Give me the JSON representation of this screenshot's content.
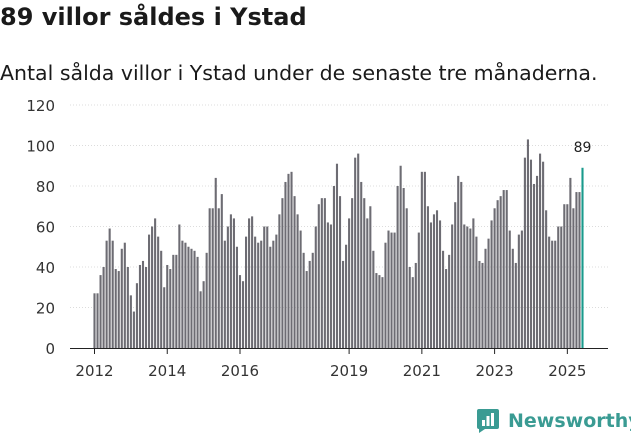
{
  "headline": "89 villor såldes i Ystad",
  "chart_data": {
    "type": "bar",
    "title": "89 villor såldes i Ystad",
    "subtitle": "Antal sålda villor i Ystad under de senaste tre månaderna.",
    "xlabel": "",
    "ylabel": "",
    "ylim": [
      0,
      120
    ],
    "yticks": [
      "0",
      "20",
      "40",
      "60",
      "80",
      "100",
      "120"
    ],
    "xticks": [
      "2012",
      "2014",
      "2016",
      "2019",
      "2021",
      "2023",
      "2025"
    ],
    "start_year": 2012,
    "grid": true,
    "highlight_color": "#1a9a8c",
    "bar_color": "#6d6c73",
    "last_label": "89",
    "values": [
      27,
      27,
      36,
      40,
      53,
      59,
      53,
      39,
      38,
      49,
      52,
      40,
      26,
      18,
      32,
      41,
      43,
      40,
      56,
      60,
      64,
      55,
      48,
      30,
      41,
      39,
      46,
      46,
      61,
      53,
      52,
      50,
      49,
      48,
      45,
      28,
      33,
      47,
      69,
      69,
      84,
      69,
      76,
      53,
      60,
      66,
      64,
      50,
      36,
      33,
      55,
      64,
      65,
      55,
      52,
      53,
      60,
      60,
      50,
      53,
      56,
      66,
      74,
      82,
      86,
      87,
      75,
      66,
      58,
      47,
      38,
      43,
      47,
      60,
      71,
      74,
      74,
      62,
      61,
      80,
      91,
      75,
      43,
      51,
      64,
      74,
      94,
      96,
      82,
      74,
      64,
      70,
      48,
      37,
      36,
      35,
      52,
      58,
      57,
      57,
      80,
      90,
      79,
      69,
      40,
      35,
      42,
      57,
      87,
      87,
      70,
      62,
      66,
      68,
      63,
      48,
      39,
      46,
      61,
      72,
      85,
      82,
      61,
      60,
      59,
      64,
      55,
      43,
      42,
      49,
      54,
      63,
      69,
      73,
      75,
      78,
      78,
      58,
      49,
      42,
      56,
      58,
      94,
      103,
      93,
      81,
      85,
      96,
      92,
      68,
      55,
      53,
      53,
      60,
      60,
      71,
      71,
      84,
      69,
      77,
      77,
      89
    ]
  },
  "brand": {
    "name": "Newsworthy",
    "color": "#3a9b93"
  }
}
